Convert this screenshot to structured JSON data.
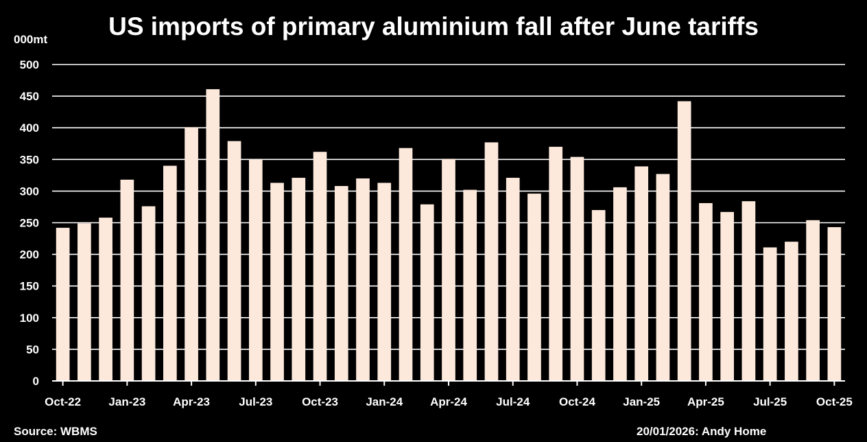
{
  "chart_data": {
    "type": "bar",
    "title": "US imports of primary aluminium fall after June tariffs",
    "ylabel": "000mt",
    "xlabel": "",
    "ylim": [
      0,
      500
    ],
    "yticks": [
      0,
      50,
      100,
      150,
      200,
      250,
      300,
      350,
      400,
      450,
      500
    ],
    "grid": true,
    "bar_color": "#fde9dc",
    "categories": [
      "Oct-22",
      "Nov-22",
      "Dec-22",
      "Jan-23",
      "Feb-23",
      "Mar-23",
      "Apr-23",
      "May-23",
      "Jun-23",
      "Jul-23",
      "Aug-23",
      "Sep-23",
      "Oct-23",
      "Nov-23",
      "Dec-23",
      "Jan-24",
      "Feb-24",
      "Mar-24",
      "Apr-24",
      "May-24",
      "Jun-24",
      "Jul-24",
      "Aug-24",
      "Sep-24",
      "Oct-24",
      "Nov-24",
      "Dec-24",
      "Jan-25",
      "Feb-25",
      "Mar-25",
      "Apr-25",
      "May-25",
      "Jun-25",
      "Jul-25",
      "Aug-25",
      "Sep-25",
      "Oct-25"
    ],
    "x_tick_labels": [
      "Oct-22",
      "Jan-23",
      "Apr-23",
      "Jul-23",
      "Oct-23",
      "Jan-24",
      "Apr-24",
      "Jul-24",
      "Oct-24",
      "Jan-25",
      "Apr-25",
      "Jul-25",
      "Oct-25"
    ],
    "values": [
      242,
      249,
      258,
      318,
      276,
      340,
      401,
      461,
      379,
      350,
      313,
      321,
      362,
      308,
      320,
      313,
      368,
      279,
      351,
      302,
      377,
      321,
      296,
      370,
      354,
      270,
      306,
      339,
      327,
      442,
      281,
      267,
      284,
      211,
      220,
      254,
      243
    ]
  },
  "footer": {
    "source": "Source: WBMS",
    "credit": "20/01/2026: Andy Home"
  }
}
